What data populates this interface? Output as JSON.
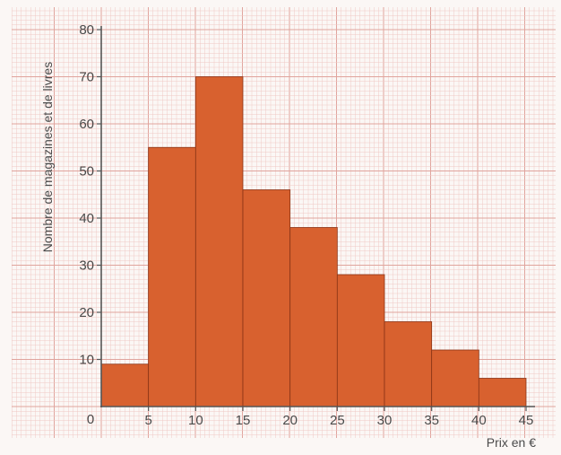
{
  "chart_data": {
    "type": "bar",
    "title": "",
    "xlabel": "Prix en €",
    "ylabel": "Nombre de magazines et de livres",
    "bins": [
      {
        "x0": 0,
        "x1": 5,
        "value": 9
      },
      {
        "x0": 5,
        "x1": 10,
        "value": 55
      },
      {
        "x0": 10,
        "x1": 15,
        "value": 70
      },
      {
        "x0": 15,
        "x1": 20,
        "value": 46
      },
      {
        "x0": 20,
        "x1": 25,
        "value": 38
      },
      {
        "x0": 25,
        "x1": 30,
        "value": 28
      },
      {
        "x0": 30,
        "x1": 35,
        "value": 18
      },
      {
        "x0": 35,
        "x1": 40,
        "value": 12
      },
      {
        "x0": 40,
        "x1": 45,
        "value": 6
      }
    ],
    "xlim": [
      0,
      45
    ],
    "ylim": [
      0,
      80
    ],
    "xticks": [
      5,
      10,
      15,
      20,
      25,
      30,
      35,
      40,
      45
    ],
    "yticks": [
      10,
      20,
      30,
      40,
      50,
      60,
      70,
      80
    ],
    "origin_label": "0",
    "grid": true,
    "colors": {
      "bar": "#d8612f",
      "bar_edge": "#8a3416",
      "paper": "#fbf7f5",
      "grid_fine": "#efc9c5",
      "grid_major": "#e0a49d",
      "axis": "#555555"
    }
  }
}
